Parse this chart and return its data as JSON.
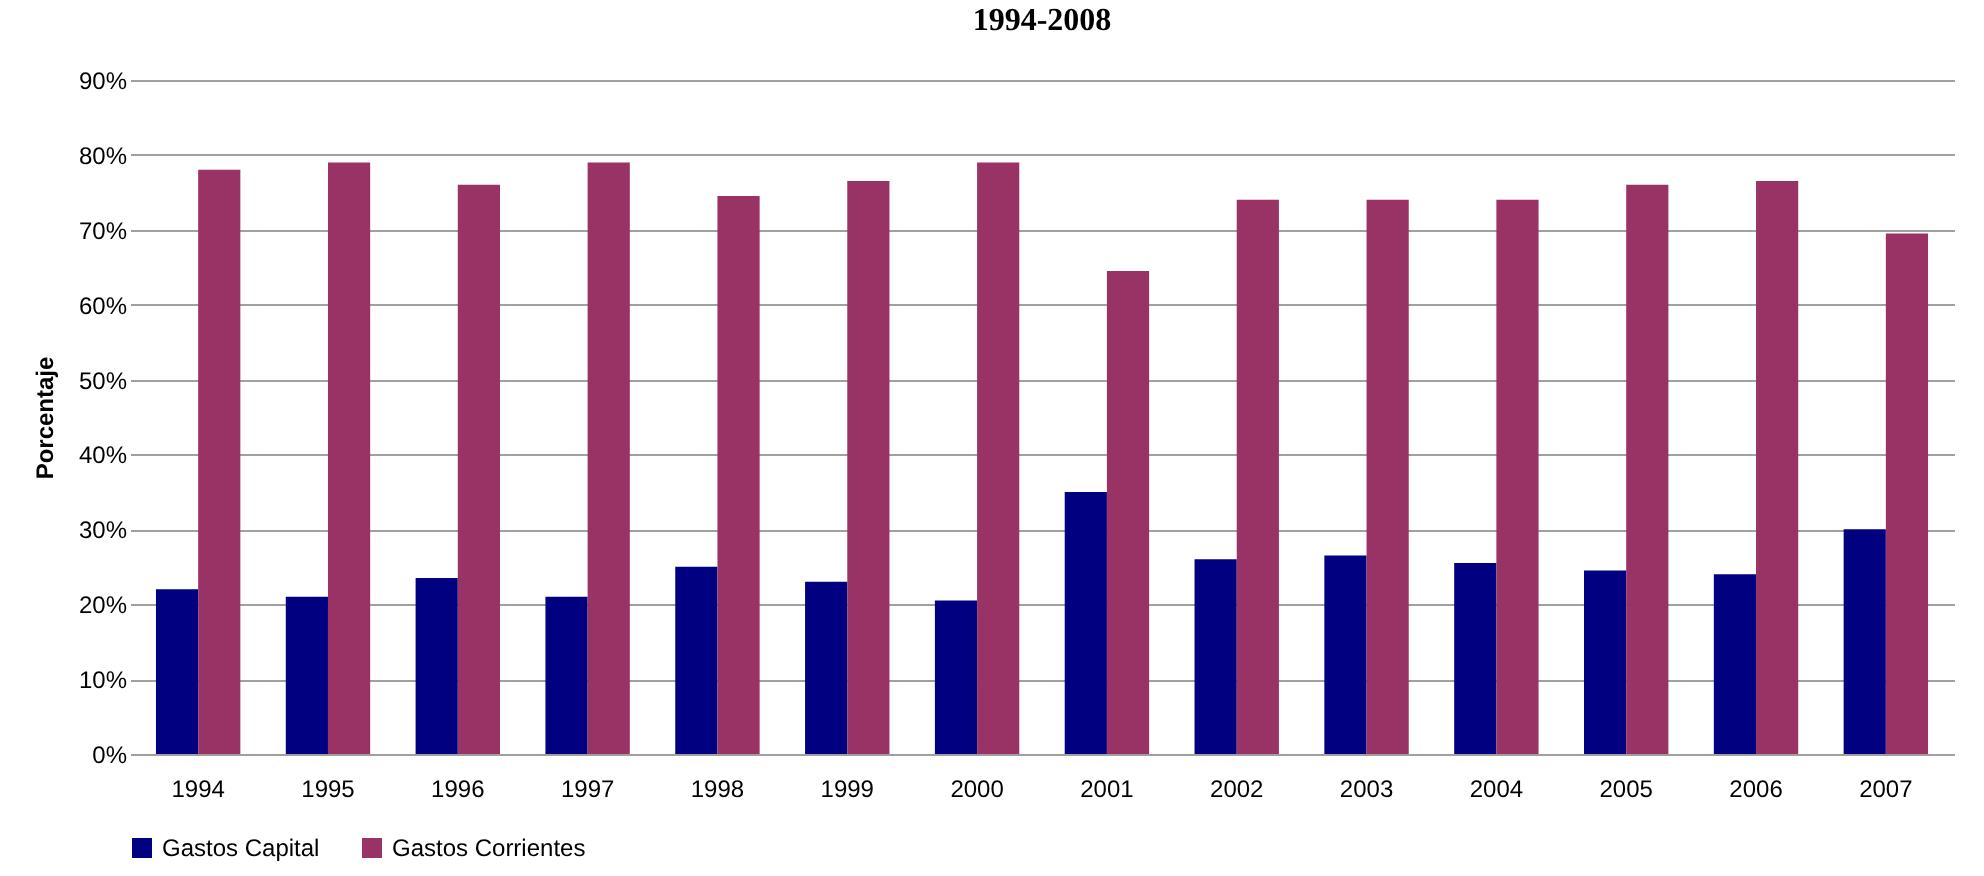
{
  "chart_data": {
    "type": "bar",
    "title": "1994-2008",
    "ylabel": "Porcentaje",
    "categories": [
      "1994",
      "1995",
      "1996",
      "1997",
      "1998",
      "1999",
      "2000",
      "2001",
      "2002",
      "2003",
      "2004",
      "2005",
      "2006",
      "2007"
    ],
    "series": [
      {
        "name": "Gastos Capital",
        "color": "#000080",
        "values": [
          22,
          21,
          23.5,
          21,
          25,
          23,
          20.5,
          35,
          26,
          26.5,
          25.5,
          24.5,
          24,
          30
        ]
      },
      {
        "name": "Gastos Corrientes",
        "color": "#993366",
        "values": [
          78,
          79,
          76,
          79,
          74.5,
          76.5,
          79,
          64.5,
          74,
          74,
          74,
          76,
          76.5,
          69.5
        ]
      }
    ],
    "ylim": [
      0,
      90
    ],
    "yticks": [
      {
        "value": 0,
        "label": "0%"
      },
      {
        "value": 10,
        "label": "10%"
      },
      {
        "value": 20,
        "label": "20%"
      },
      {
        "value": 30,
        "label": "30%"
      },
      {
        "value": 40,
        "label": "40%"
      },
      {
        "value": 50,
        "label": "50%"
      },
      {
        "value": 60,
        "label": "60%"
      },
      {
        "value": 70,
        "label": "70%"
      },
      {
        "value": 80,
        "label": "80%"
      },
      {
        "value": 90,
        "label": "90%"
      }
    ],
    "grid": "y",
    "legend": "bottom"
  }
}
